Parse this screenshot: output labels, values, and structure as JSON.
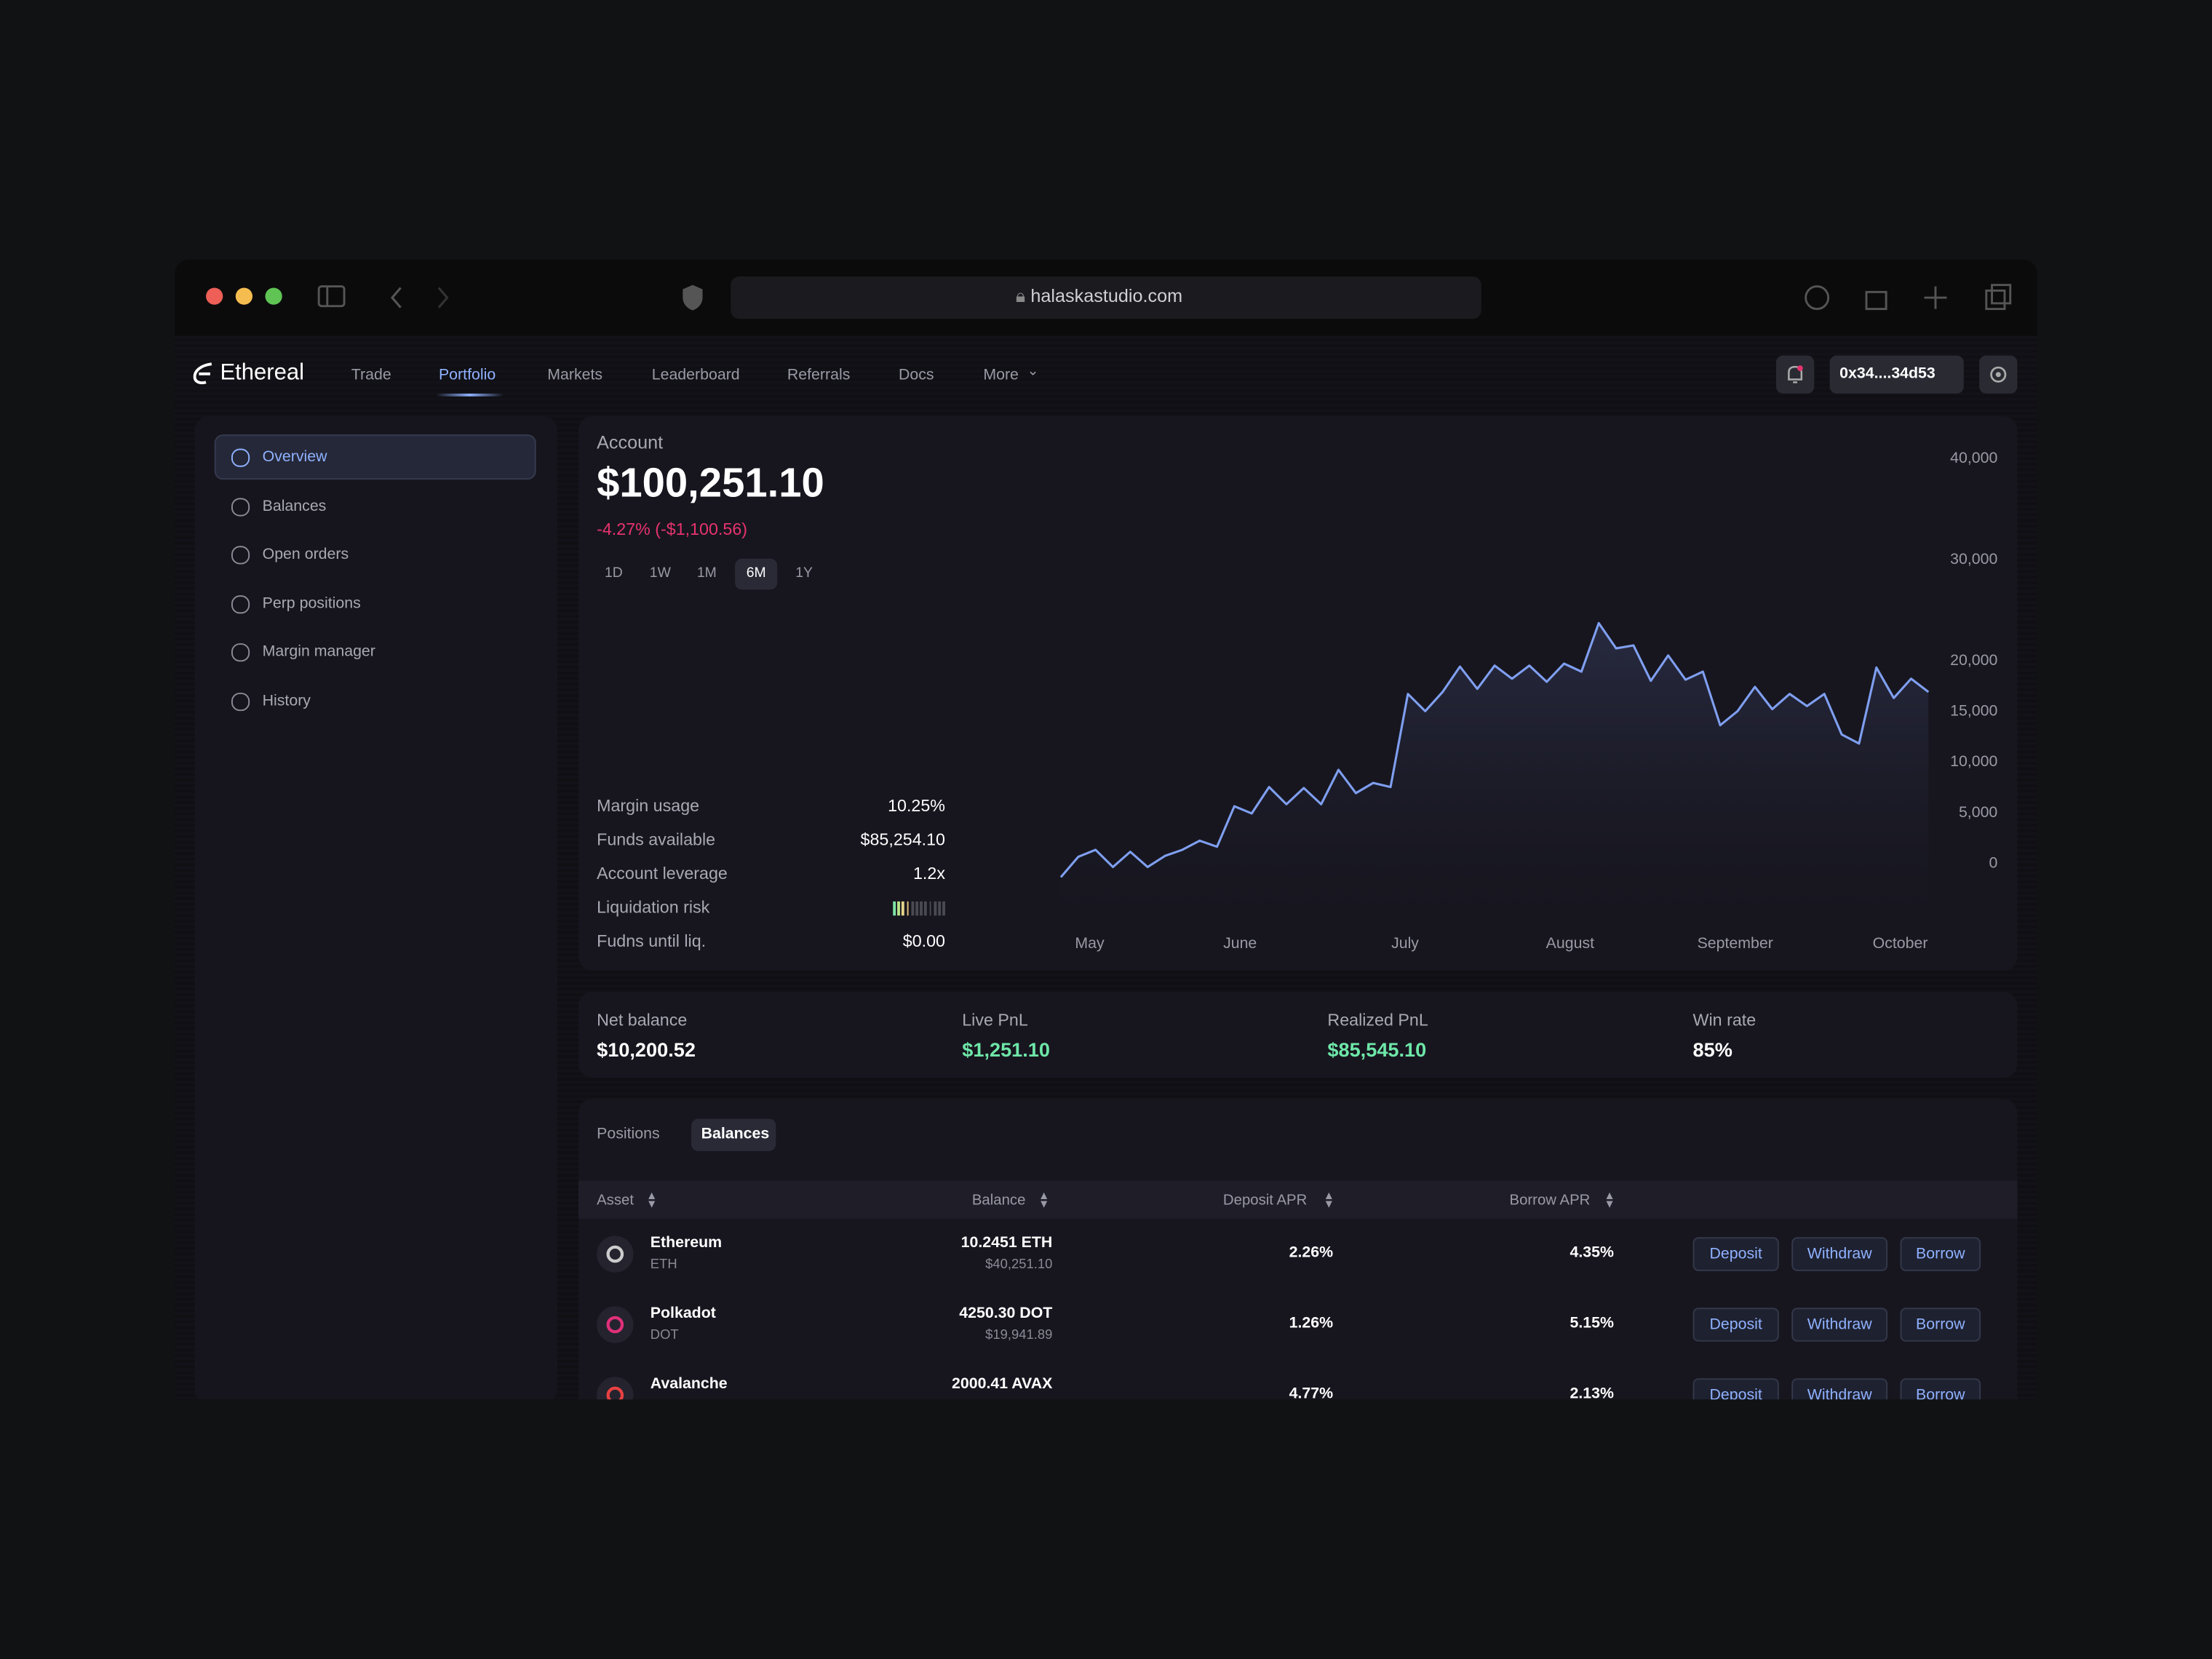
{
  "browser": {
    "url": "halaskastudio.com"
  },
  "app": {
    "logo": "Ethereal",
    "nav": [
      "Trade",
      "Portfolio",
      "Markets",
      "Leaderboard",
      "Referrals",
      "Docs",
      "More"
    ],
    "active_nav": 1,
    "wallet": "0x34....34d53"
  },
  "sidebar": {
    "items": [
      "Overview",
      "Balances",
      "Open orders",
      "Perp positions",
      "Margin manager",
      "History"
    ],
    "active_item": 0
  },
  "account": {
    "label": "Account",
    "value": "$100,251.10",
    "change": "-4.27% (-$1,100.56)",
    "periods": [
      "1D",
      "1W",
      "1M",
      "6M",
      "1Y"
    ],
    "active_period": 3
  },
  "metrics": [
    {
      "label": "Margin usage",
      "value": "10.25%"
    },
    {
      "label": "Funds available",
      "value": "$85,254.10"
    },
    {
      "label": "Account leverage",
      "value": "1.2x"
    },
    {
      "label": "Liquidation risk"
    },
    {
      "label": "Fudns until liq.",
      "value": "$0.00"
    }
  ],
  "chart": {
    "type": "line",
    "color": "#7f9ff0",
    "x_labels": [
      "May",
      "June",
      "July",
      "August",
      "September",
      "October"
    ],
    "values": [
      -1500,
      500,
      1200,
      -500,
      1000,
      -500,
      600,
      1200,
      2100,
      1500,
      5500,
      4800,
      7400,
      5700,
      7300,
      5700,
      9100,
      6800,
      7800,
      7400,
      16600,
      14900,
      16800,
      19300,
      17100,
      19400,
      18100,
      19400,
      17800,
      19600,
      18800,
      23600,
      21100,
      21400,
      17900,
      20400,
      18000,
      18800,
      13500,
      14900,
      17300,
      15100,
      16600,
      15400,
      16600,
      12600,
      11700,
      19200,
      16200,
      18100,
      16800
    ],
    "ylim": [
      -3000,
      40000
    ],
    "yticks": [
      0,
      {
        "value": 5000,
        "label": "5,000"
      },
      {
        "value": 10000,
        "label": "10,000"
      },
      {
        "value": 15000,
        "label": "15,000"
      },
      {
        "value": 20000,
        "label": "20,000"
      },
      {
        "value": 30000,
        "label": "30,000"
      },
      {
        "value": 40000,
        "label": "40,000"
      }
    ]
  },
  "stats": [
    {
      "label": "Net balance",
      "value": "$10,200.52"
    },
    {
      "label": "Live PnL",
      "value": "$1,251.10",
      "positive": true
    },
    {
      "label": "Realized PnL",
      "value": "$85,545.10",
      "positive": true
    },
    {
      "label": "Win rate",
      "value": "85%"
    }
  ],
  "balances": {
    "tabs": [
      "Positions",
      "Balances"
    ],
    "active_tab": 1,
    "columns": [
      "Asset",
      "Balance",
      "Deposit APR",
      "Borrow APR"
    ],
    "actions": [
      "Deposit",
      "Withdraw",
      "Borrow"
    ],
    "rows": [
      {
        "asset": "Ethereum",
        "symbol": "ETH",
        "balance": "10.2451 ETH",
        "balance_usd": "$40,251.10",
        "deposit_apr": "2.26%",
        "borrow_apr": "4.35%"
      },
      {
        "asset": "Polkadot",
        "symbol": "DOT",
        "balance": "4250.30 DOT",
        "balance_usd": "$19,941.89",
        "deposit_apr": "1.26%",
        "borrow_apr": "5.15%"
      },
      {
        "asset": "Avalanche",
        "balance": "2000.41 AVAX",
        "deposit_apr": "4.77%",
        "borrow_apr": "2.13%"
      }
    ]
  }
}
